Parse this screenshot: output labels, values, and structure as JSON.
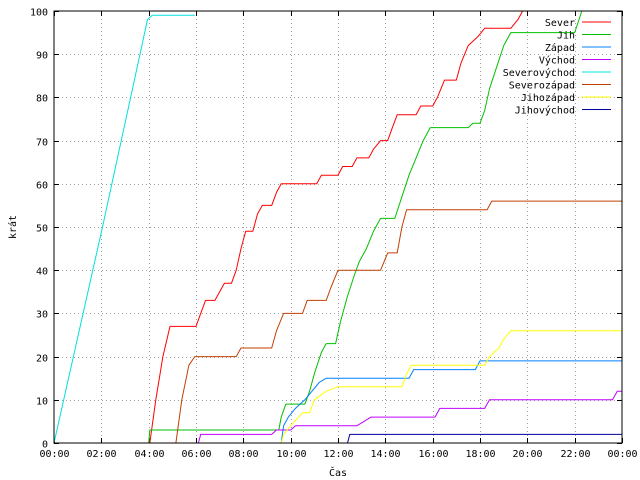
{
  "chart_data": {
    "type": "line",
    "xlabel": "Čas",
    "ylabel": "krát",
    "xlim": [
      0,
      24
    ],
    "ylim": [
      0,
      100
    ],
    "x_ticks": [
      {
        "value": 0,
        "label": "00:00"
      },
      {
        "value": 2,
        "label": "02:00"
      },
      {
        "value": 4,
        "label": "04:00"
      },
      {
        "value": 6,
        "label": "06:00"
      },
      {
        "value": 8,
        "label": "08:00"
      },
      {
        "value": 10,
        "label": "10:00"
      },
      {
        "value": 12,
        "label": "12:00"
      },
      {
        "value": 14,
        "label": "14:00"
      },
      {
        "value": 16,
        "label": "16:00"
      },
      {
        "value": 18,
        "label": "18:00"
      },
      {
        "value": 20,
        "label": "20:00"
      },
      {
        "value": 22,
        "label": "22:00"
      },
      {
        "value": 24,
        "label": "00:00"
      }
    ],
    "y_ticks": [
      {
        "value": 0,
        "label": "0"
      },
      {
        "value": 10,
        "label": "10"
      },
      {
        "value": 20,
        "label": "20"
      },
      {
        "value": 30,
        "label": "30"
      },
      {
        "value": 40,
        "label": "40"
      },
      {
        "value": 50,
        "label": "50"
      },
      {
        "value": 60,
        "label": "60"
      },
      {
        "value": 70,
        "label": "70"
      },
      {
        "value": 80,
        "label": "80"
      },
      {
        "value": 90,
        "label": "90"
      },
      {
        "value": 100,
        "label": "100"
      }
    ],
    "grid": true,
    "legend_position": "top-right",
    "series": [
      {
        "name": "Sever",
        "color": "#ff0000",
        "points": [
          [
            0,
            0
          ],
          [
            4.05,
            0
          ],
          [
            4.3,
            10
          ],
          [
            4.6,
            20
          ],
          [
            4.9,
            27
          ],
          [
            5.2,
            27
          ],
          [
            6.0,
            27
          ],
          [
            6.2,
            30
          ],
          [
            6.4,
            33
          ],
          [
            6.8,
            33
          ],
          [
            7.0,
            35
          ],
          [
            7.2,
            37
          ],
          [
            7.5,
            37
          ],
          [
            7.7,
            40
          ],
          [
            7.9,
            45
          ],
          [
            8.1,
            49
          ],
          [
            8.4,
            49
          ],
          [
            8.6,
            53
          ],
          [
            8.8,
            55
          ],
          [
            9.2,
            55
          ],
          [
            9.4,
            58
          ],
          [
            9.6,
            60
          ],
          [
            11.1,
            60
          ],
          [
            11.3,
            62
          ],
          [
            12.0,
            62
          ],
          [
            12.2,
            64
          ],
          [
            12.6,
            64
          ],
          [
            12.8,
            66
          ],
          [
            13.3,
            66
          ],
          [
            13.5,
            68
          ],
          [
            13.8,
            70
          ],
          [
            14.1,
            70
          ],
          [
            14.3,
            73
          ],
          [
            14.5,
            76
          ],
          [
            15.3,
            76
          ],
          [
            15.5,
            78
          ],
          [
            16.0,
            78
          ],
          [
            16.2,
            80
          ],
          [
            16.5,
            84
          ],
          [
            17.0,
            84
          ],
          [
            17.2,
            88
          ],
          [
            17.5,
            92
          ],
          [
            17.9,
            94
          ],
          [
            18.2,
            96
          ],
          [
            19.3,
            96
          ],
          [
            19.6,
            98
          ],
          [
            19.8,
            100
          ]
        ]
      },
      {
        "name": "Jih",
        "color": "#00c000",
        "points": [
          [
            0,
            0
          ],
          [
            4.0,
            0
          ],
          [
            4.05,
            3
          ],
          [
            9.5,
            3
          ],
          [
            9.6,
            6
          ],
          [
            9.8,
            9
          ],
          [
            10.6,
            9
          ],
          [
            10.8,
            12
          ],
          [
            11.0,
            16
          ],
          [
            11.3,
            21
          ],
          [
            11.5,
            23
          ],
          [
            11.9,
            23
          ],
          [
            12.1,
            28
          ],
          [
            12.4,
            34
          ],
          [
            12.7,
            39
          ],
          [
            12.9,
            42
          ],
          [
            13.2,
            45
          ],
          [
            13.5,
            49
          ],
          [
            13.8,
            52
          ],
          [
            14.4,
            52
          ],
          [
            14.7,
            57
          ],
          [
            15.0,
            62
          ],
          [
            15.3,
            66
          ],
          [
            15.6,
            70
          ],
          [
            15.9,
            73
          ],
          [
            17.5,
            73
          ],
          [
            17.7,
            74
          ],
          [
            18.0,
            74
          ],
          [
            18.2,
            77
          ],
          [
            18.4,
            82
          ],
          [
            18.7,
            87
          ],
          [
            19.0,
            92
          ],
          [
            19.3,
            95
          ],
          [
            22.0,
            95
          ],
          [
            22.3,
            100
          ]
        ]
      },
      {
        "name": "Západ",
        "color": "#0080ff",
        "points": [
          [
            0,
            0
          ],
          [
            9.6,
            0
          ],
          [
            9.7,
            4
          ],
          [
            9.9,
            6
          ],
          [
            10.2,
            8
          ],
          [
            10.6,
            10
          ],
          [
            10.9,
            12
          ],
          [
            11.2,
            14
          ],
          [
            11.5,
            15
          ],
          [
            15.0,
            15
          ],
          [
            15.2,
            17
          ],
          [
            16.2,
            17
          ],
          [
            17.8,
            17
          ],
          [
            18.0,
            19
          ],
          [
            24,
            19
          ]
        ]
      },
      {
        "name": "Východ",
        "color": "#c000ff",
        "points": [
          [
            0,
            0
          ],
          [
            6.1,
            0
          ],
          [
            6.2,
            2
          ],
          [
            9.2,
            2
          ],
          [
            9.4,
            3
          ],
          [
            10.0,
            3
          ],
          [
            10.2,
            4
          ],
          [
            12.8,
            4
          ],
          [
            13.1,
            5
          ],
          [
            13.4,
            6
          ],
          [
            16.1,
            6
          ],
          [
            16.3,
            8
          ],
          [
            18.2,
            8
          ],
          [
            18.4,
            10
          ],
          [
            23.6,
            10
          ],
          [
            23.8,
            12
          ],
          [
            24,
            12
          ]
        ]
      },
      {
        "name": "Severovýchod",
        "color": "#00e0e0",
        "points": [
          [
            0,
            0
          ],
          [
            2.05,
            50
          ],
          [
            3.95,
            98
          ],
          [
            4.15,
            99
          ],
          [
            5.95,
            99
          ]
        ]
      },
      {
        "name": "Severozápad",
        "color": "#c04000",
        "points": [
          [
            0,
            0
          ],
          [
            5.15,
            0
          ],
          [
            5.4,
            10
          ],
          [
            5.7,
            18
          ],
          [
            5.95,
            20
          ],
          [
            7.7,
            20
          ],
          [
            7.9,
            22
          ],
          [
            9.2,
            22
          ],
          [
            9.4,
            26
          ],
          [
            9.7,
            30
          ],
          [
            10.5,
            30
          ],
          [
            10.7,
            33
          ],
          [
            11.5,
            33
          ],
          [
            11.7,
            36
          ],
          [
            12.0,
            40
          ],
          [
            13.8,
            40
          ],
          [
            14.1,
            44
          ],
          [
            14.5,
            44
          ],
          [
            14.7,
            50
          ],
          [
            14.9,
            54
          ],
          [
            18.3,
            54
          ],
          [
            18.5,
            56
          ],
          [
            24,
            56
          ]
        ]
      },
      {
        "name": "Jihozápad",
        "color": "#ffff00",
        "points": [
          [
            0,
            0
          ],
          [
            9.6,
            0
          ],
          [
            9.7,
            2
          ],
          [
            10.0,
            4
          ],
          [
            10.5,
            7
          ],
          [
            10.8,
            7
          ],
          [
            11.0,
            10
          ],
          [
            11.5,
            12
          ],
          [
            12.0,
            13
          ],
          [
            14.7,
            13
          ],
          [
            14.9,
            16
          ],
          [
            15.1,
            18
          ],
          [
            18.2,
            18
          ],
          [
            18.4,
            20
          ],
          [
            18.8,
            22
          ],
          [
            19.0,
            24
          ],
          [
            19.3,
            26
          ],
          [
            24,
            26
          ]
        ]
      },
      {
        "name": "Jihovýchod",
        "color": "#0000a0",
        "points": [
          [
            0,
            0
          ],
          [
            12.4,
            0
          ],
          [
            12.5,
            2
          ],
          [
            24,
            2
          ]
        ]
      }
    ]
  }
}
